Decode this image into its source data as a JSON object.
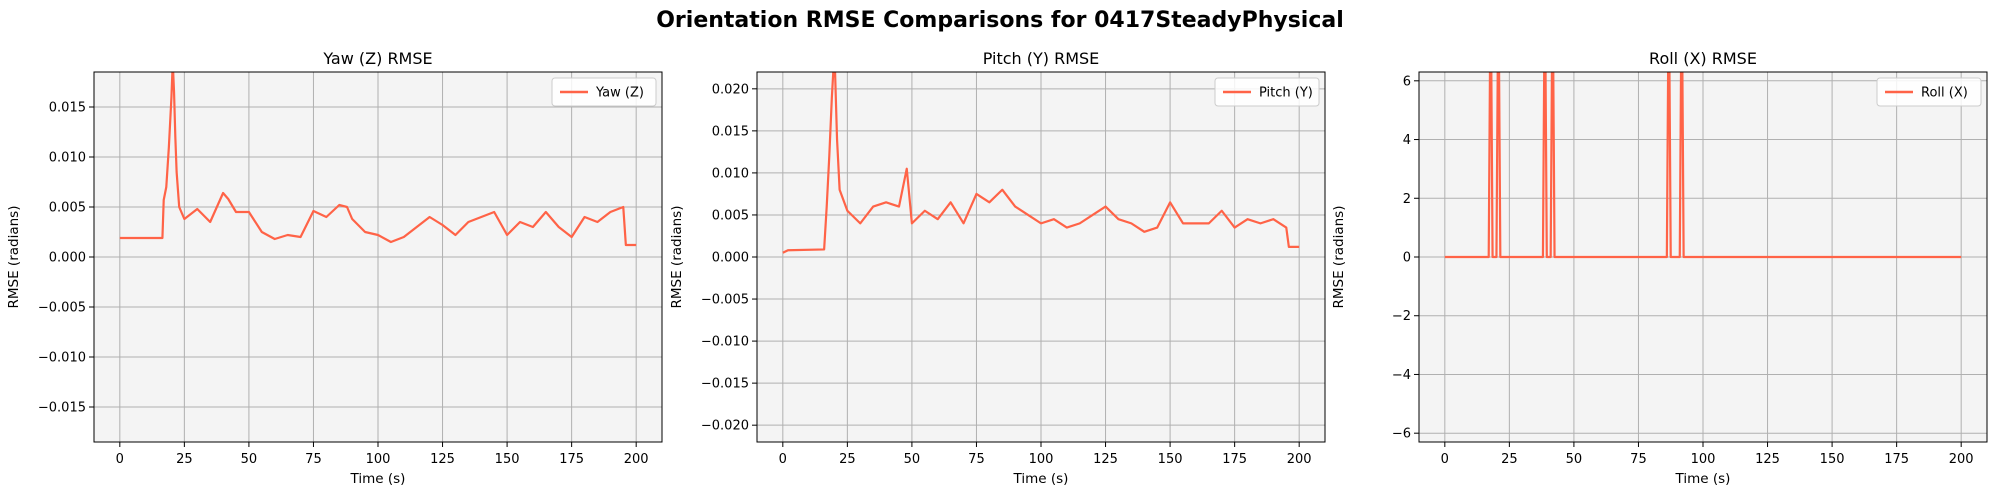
{
  "figure_title": "Orientation RMSE Comparisons for 0417SteadyPhysical",
  "colors": {
    "line": "#ff6347",
    "axes_bg": "#f4f4f4",
    "grid": "#b0b0b0"
  },
  "chart_data": [
    {
      "type": "line",
      "title": "Yaw (Z) RMSE",
      "xlabel": "Time (s)",
      "ylabel": "RMSE (radians)",
      "xlim": [
        -10,
        210
      ],
      "ylim": [
        -0.0185,
        0.0185
      ],
      "xticks": [
        0,
        25,
        50,
        75,
        100,
        125,
        150,
        175,
        200
      ],
      "yticks": [
        -0.015,
        -0.01,
        -0.005,
        0.0,
        0.005,
        0.01,
        0.015
      ],
      "ytick_labels": [
        "−0.015",
        "−0.010",
        "−0.005",
        "0.000",
        "0.005",
        "0.010",
        "0.015"
      ],
      "grid": true,
      "legend": "upper right",
      "series": [
        {
          "name": "Yaw (Z)",
          "x": [
            0,
            16.5,
            17,
            18,
            19,
            20,
            20.5,
            21,
            21.5,
            22,
            23,
            25,
            30,
            35,
            40,
            42,
            45,
            50,
            55,
            60,
            65,
            70,
            75,
            80,
            85,
            88,
            90,
            95,
            100,
            105,
            110,
            115,
            120,
            125,
            130,
            135,
            140,
            145,
            150,
            155,
            160,
            165,
            170,
            175,
            180,
            185,
            190,
            195,
            196,
            200
          ],
          "y": [
            0.0019,
            0.0019,
            0.0057,
            0.007,
            0.011,
            0.016,
            0.0195,
            0.0165,
            0.012,
            0.0085,
            0.005,
            0.0038,
            0.0048,
            0.0035,
            0.0064,
            0.0058,
            0.0045,
            0.0045,
            0.0025,
            0.0018,
            0.0022,
            0.002,
            0.0046,
            0.004,
            0.0052,
            0.005,
            0.0038,
            0.0025,
            0.0022,
            0.0015,
            0.002,
            0.003,
            0.004,
            0.0032,
            0.0022,
            0.0035,
            0.004,
            0.0045,
            0.0022,
            0.0035,
            0.003,
            0.0045,
            0.003,
            0.002,
            0.004,
            0.0035,
            0.0045,
            0.005,
            0.0012,
            0.0012
          ]
        }
      ]
    },
    {
      "type": "line",
      "title": "Pitch (Y) RMSE",
      "xlabel": "Time (s)",
      "ylabel": "RMSE (radians)",
      "xlim": [
        -10,
        210
      ],
      "ylim": [
        -0.022,
        0.022
      ],
      "xticks": [
        0,
        25,
        50,
        75,
        100,
        125,
        150,
        175,
        200
      ],
      "yticks": [
        -0.02,
        -0.015,
        -0.01,
        -0.005,
        0.0,
        0.005,
        0.01,
        0.015,
        0.02
      ],
      "ytick_labels": [
        "−0.020",
        "−0.015",
        "−0.010",
        "−0.005",
        "0.000",
        "0.005",
        "0.010",
        "0.015",
        "0.020"
      ],
      "grid": true,
      "legend": "upper right",
      "series": [
        {
          "name": "Pitch (Y)",
          "x": [
            0,
            2,
            16,
            17,
            18,
            19,
            20,
            21,
            22,
            25,
            30,
            35,
            40,
            45,
            48,
            50,
            55,
            60,
            65,
            70,
            75,
            80,
            85,
            90,
            95,
            100,
            105,
            110,
            115,
            120,
            125,
            130,
            135,
            140,
            145,
            150,
            155,
            160,
            165,
            170,
            175,
            180,
            185,
            190,
            195,
            196,
            200
          ],
          "y": [
            0.0005,
            0.0008,
            0.0009,
            0.006,
            0.012,
            0.019,
            0.0245,
            0.014,
            0.008,
            0.0055,
            0.004,
            0.006,
            0.0065,
            0.006,
            0.0105,
            0.004,
            0.0055,
            0.0045,
            0.0065,
            0.004,
            0.0075,
            0.0065,
            0.008,
            0.006,
            0.005,
            0.004,
            0.0045,
            0.0035,
            0.004,
            0.005,
            0.006,
            0.0045,
            0.004,
            0.003,
            0.0035,
            0.0065,
            0.004,
            0.004,
            0.004,
            0.0055,
            0.0035,
            0.0045,
            0.004,
            0.0045,
            0.0035,
            0.0012,
            0.0012
          ]
        }
      ]
    },
    {
      "type": "line",
      "title": "Roll (X) RMSE",
      "xlabel": "Time (s)",
      "ylabel": "RMSE (radians)",
      "xlim": [
        -10,
        210
      ],
      "ylim": [
        -6.3,
        6.3
      ],
      "xticks": [
        0,
        25,
        50,
        75,
        100,
        125,
        150,
        175,
        200
      ],
      "yticks": [
        -6,
        -4,
        -2,
        0,
        2,
        4,
        6
      ],
      "ytick_labels": [
        "−6",
        "−4",
        "−2",
        "0",
        "2",
        "4",
        "6"
      ],
      "grid": true,
      "legend": "upper right",
      "series": [
        {
          "name": "Roll (X)",
          "x": [
            0,
            17,
            17.5,
            18,
            18.5,
            20,
            20.5,
            21,
            21.5,
            38,
            38.5,
            39,
            39.5,
            41,
            41.5,
            42,
            42.5,
            86,
            86.5,
            87,
            87.5,
            91,
            91.5,
            92,
            92.5,
            200
          ],
          "y": [
            0,
            0,
            6.5,
            6.5,
            0,
            0,
            6.5,
            6.5,
            0,
            0,
            6.5,
            6.5,
            0,
            0,
            6.5,
            6.5,
            0,
            0,
            6.5,
            6.5,
            0,
            0,
            6.5,
            6.5,
            0,
            0
          ]
        }
      ]
    }
  ]
}
